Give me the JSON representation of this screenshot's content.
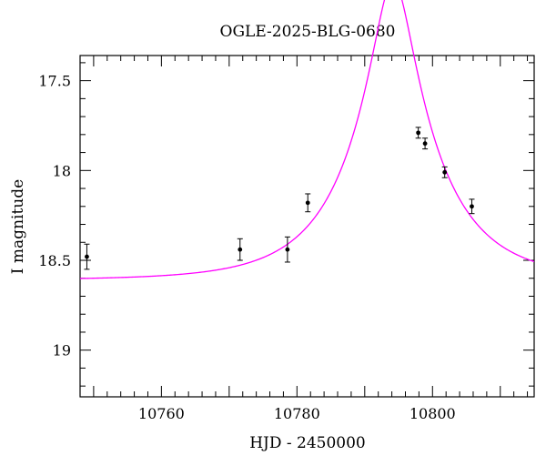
{
  "chart_data": {
    "type": "scatter",
    "title": "OGLE-2025-BLG-0680",
    "xlabel": "HJD - 2450000",
    "ylabel": "I magnitude",
    "xlim": [
      10748,
      10815
    ],
    "ylim": [
      19.26,
      17.36
    ],
    "y_inverted": true,
    "grid": false,
    "x_ticks": [
      {
        "value": 10760,
        "label": "10760"
      },
      {
        "value": 10780,
        "label": "10780"
      },
      {
        "value": 10800,
        "label": "10800"
      }
    ],
    "y_ticks": [
      {
        "value": 17.5,
        "label": "17.5"
      },
      {
        "value": 18.0,
        "label": "18"
      },
      {
        "value": 18.5,
        "label": "18.5"
      },
      {
        "value": 19.0,
        "label": "19"
      }
    ],
    "observations": [
      {
        "x": 10749.0,
        "y": 18.48,
        "err": 0.07
      },
      {
        "x": 10771.6,
        "y": 18.44,
        "err": 0.06
      },
      {
        "x": 10778.6,
        "y": 18.44,
        "err": 0.07
      },
      {
        "x": 10781.6,
        "y": 18.18,
        "err": 0.05
      },
      {
        "x": 10797.9,
        "y": 17.79,
        "err": 0.03
      },
      {
        "x": 10798.9,
        "y": 17.85,
        "err": 0.03
      },
      {
        "x": 10801.8,
        "y": 18.01,
        "err": 0.03
      },
      {
        "x": 10805.8,
        "y": 18.2,
        "err": 0.04
      }
    ],
    "model": {
      "kind": "point-lens microlensing fit",
      "t0": 10794.2,
      "tE": 12.5,
      "u0": 0.22,
      "baseline_mag": 18.61,
      "blend_fraction": 1.0,
      "color": "#ff00ff"
    },
    "colors": {
      "points": "#000000",
      "model": "#ff00ff",
      "frame": "#000000"
    }
  }
}
